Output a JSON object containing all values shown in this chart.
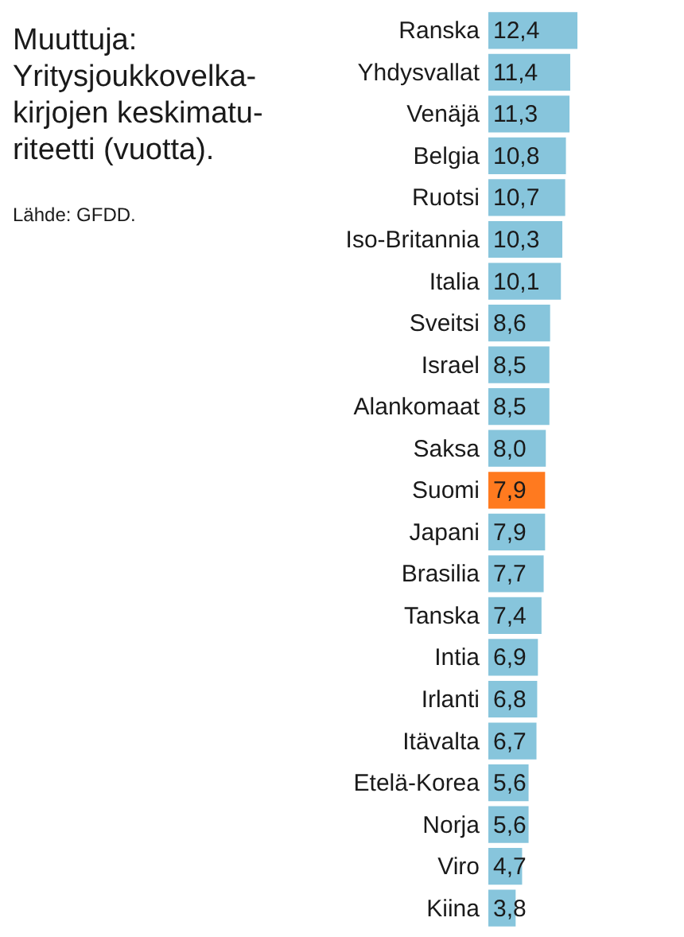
{
  "chart_data": {
    "type": "bar",
    "orientation": "horizontal",
    "title": "Muuttuja:\nYritysjoukkovelka-\nkirjojen keskimatu-\nriteetti (vuotta).",
    "annotations": [
      "Lähde: GFDD."
    ],
    "categories": [
      "Ranska",
      "Yhdysvallat",
      "Venäjä",
      "Belgia",
      "Ruotsi",
      "Iso-Britannia",
      "Italia",
      "Sveitsi",
      "Israel",
      "Alankomaat",
      "Saksa",
      "Suomi",
      "Japani",
      "Brasilia",
      "Tanska",
      "Intia",
      "Irlanti",
      "Itävalta",
      "Etelä-Korea",
      "Norja",
      "Viro",
      "Kiina"
    ],
    "values": [
      12.4,
      11.4,
      11.3,
      10.8,
      10.7,
      10.3,
      10.1,
      8.6,
      8.5,
      8.5,
      8.0,
      7.9,
      7.9,
      7.7,
      7.4,
      6.9,
      6.8,
      6.7,
      5.6,
      5.6,
      4.7,
      3.8
    ],
    "colors": [
      "#87c5dc",
      "#87c5dc",
      "#87c5dc",
      "#87c5dc",
      "#87c5dc",
      "#87c5dc",
      "#87c5dc",
      "#87c5dc",
      "#87c5dc",
      "#87c5dc",
      "#87c5dc",
      "#ff7a1f",
      "#87c5dc",
      "#87c5dc",
      "#87c5dc",
      "#87c5dc",
      "#87c5dc",
      "#87c5dc",
      "#87c5dc",
      "#87c5dc",
      "#87c5dc",
      "#87c5dc"
    ],
    "value_labels": [
      "12,4",
      "11,4",
      "11,3",
      "10,8",
      "10,7",
      "10,3",
      "10,1",
      "8,6",
      "8,5",
      "8,5",
      "8,0",
      "7,9",
      "7,9",
      "7,7",
      "7,4",
      "6,9",
      "6,8",
      "6,7",
      "5,6",
      "5,6",
      "4,7",
      "3,8"
    ]
  }
}
